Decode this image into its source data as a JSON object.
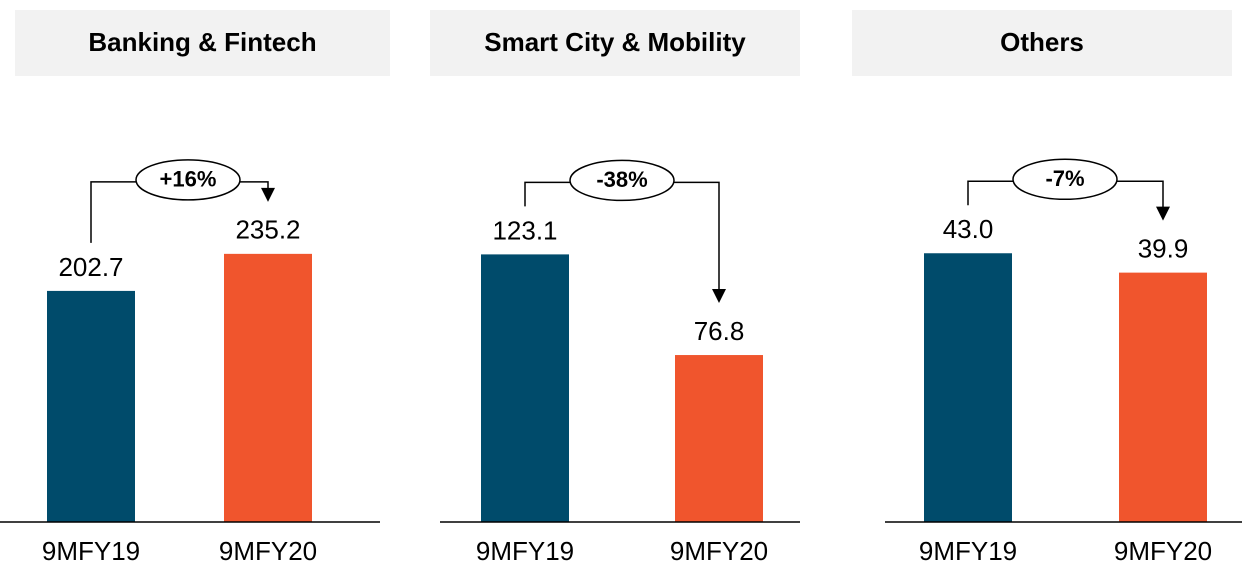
{
  "chart_data": [
    {
      "type": "bar",
      "title": "Banking & Fintech",
      "categories": [
        "9MFY19",
        "9MFY20"
      ],
      "values": [
        202.7,
        235.2
      ],
      "colors": [
        "#004b6b",
        "#f0552d"
      ],
      "ylim": [
        0,
        307
      ],
      "annotation": "+16%"
    },
    {
      "type": "bar",
      "title": "Smart City & Mobility",
      "categories": [
        "9MFY19",
        "9MFY20"
      ],
      "values": [
        123.1,
        76.8
      ],
      "colors": [
        "#004b6b",
        "#f0552d"
      ],
      "ylim": [
        0,
        161
      ],
      "annotation": "-38%"
    },
    {
      "type": "bar",
      "title": "Others",
      "categories": [
        "9MFY19",
        "9MFY20"
      ],
      "values": [
        43,
        39.9
      ],
      "value_labels": [
        "43.0",
        "39.9"
      ],
      "colors": [
        "#004b6b",
        "#f0552d"
      ],
      "ylim": [
        0,
        56
      ],
      "annotation": "-7%"
    }
  ]
}
